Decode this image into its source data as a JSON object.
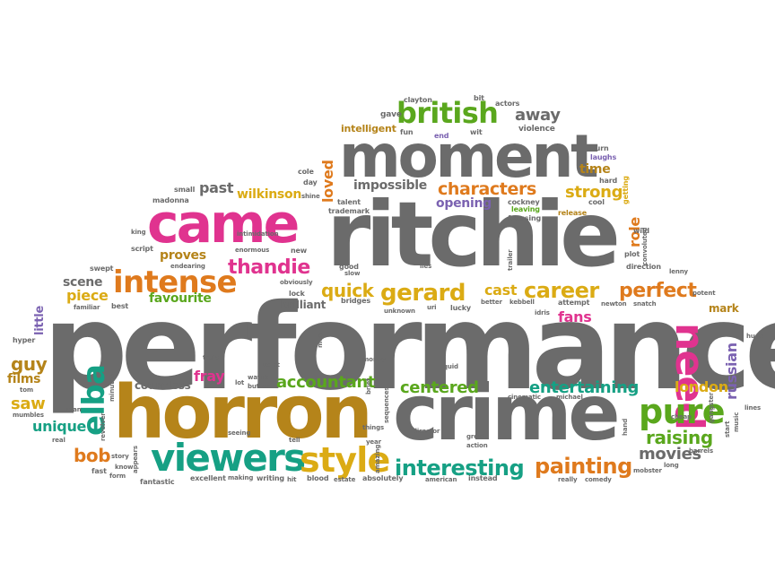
{
  "palette": {
    "gray": "#6b6b6b",
    "pink": "#e0338f",
    "gold": "#b5841a",
    "green": "#5aa71d",
    "teal": "#16a084",
    "orange": "#df7a1d",
    "purple": "#7b62b1",
    "yellow": "#dbab14"
  },
  "words": [
    {
      "text": "performance",
      "color": "gray"
    },
    {
      "text": "ritchie",
      "color": "gray"
    },
    {
      "text": "moment",
      "color": "gray"
    },
    {
      "text": "crime",
      "color": "gray"
    },
    {
      "text": "horron",
      "color": "gold"
    },
    {
      "text": "came",
      "color": "pink"
    },
    {
      "text": "british",
      "color": "green"
    },
    {
      "text": "viewers",
      "color": "teal"
    },
    {
      "text": "need",
      "color": "pink"
    },
    {
      "text": "elba",
      "color": "teal"
    },
    {
      "text": "intense",
      "color": "orange"
    },
    {
      "text": "style",
      "color": "yellow"
    },
    {
      "text": "pure",
      "color": "green"
    },
    {
      "text": "gerard",
      "color": "yellow"
    },
    {
      "text": "interesting",
      "color": "teal"
    },
    {
      "text": "painting",
      "color": "orange"
    },
    {
      "text": "thandie",
      "color": "pink"
    },
    {
      "text": "characters",
      "color": "orange"
    },
    {
      "text": "career",
      "color": "yellow"
    },
    {
      "text": "perfect",
      "color": "orange"
    },
    {
      "text": "quick",
      "color": "yellow"
    },
    {
      "text": "raising",
      "color": "green"
    },
    {
      "text": "entertaining",
      "color": "teal"
    },
    {
      "text": "accountant",
      "color": "green"
    },
    {
      "text": "centered",
      "color": "green"
    },
    {
      "text": "movies",
      "color": "gray"
    },
    {
      "text": "fans",
      "color": "pink"
    },
    {
      "text": "london",
      "color": "yellow"
    },
    {
      "text": "russian",
      "color": "purple"
    },
    {
      "text": "bob",
      "color": "orange"
    },
    {
      "text": "guy",
      "color": "gold"
    },
    {
      "text": "films",
      "color": "gold"
    },
    {
      "text": "unique",
      "color": "teal"
    },
    {
      "text": "saw",
      "color": "yellow"
    },
    {
      "text": "little",
      "color": "purple"
    },
    {
      "text": "piece",
      "color": "yellow"
    },
    {
      "text": "scene",
      "color": "gray"
    },
    {
      "text": "favourite",
      "color": "green"
    },
    {
      "text": "proves",
      "color": "gold"
    },
    {
      "text": "brilliant",
      "color": "gray"
    },
    {
      "text": "countless",
      "color": "gray"
    },
    {
      "text": "fray",
      "color": "pink"
    },
    {
      "text": "past",
      "color": "gray"
    },
    {
      "text": "wilkinson",
      "color": "yellow"
    },
    {
      "text": "loved",
      "color": "orange"
    },
    {
      "text": "impossible",
      "color": "gray"
    },
    {
      "text": "opening",
      "color": "purple"
    },
    {
      "text": "strong",
      "color": "yellow"
    },
    {
      "text": "time",
      "color": "gold"
    },
    {
      "text": "role",
      "color": "orange"
    },
    {
      "text": "away",
      "color": "gray"
    },
    {
      "text": "cast",
      "color": "yellow"
    },
    {
      "text": "mark",
      "color": "gold"
    },
    {
      "text": "intelligent",
      "color": "gold"
    },
    {
      "text": "gave",
      "color": "gray"
    },
    {
      "text": "clayton",
      "color": "gray"
    },
    {
      "text": "actors",
      "color": "gray"
    },
    {
      "text": "bit",
      "color": "gray"
    },
    {
      "text": "violence",
      "color": "gray"
    },
    {
      "text": "fun",
      "color": "gray"
    },
    {
      "text": "end",
      "color": "purple"
    },
    {
      "text": "wit",
      "color": "gray"
    },
    {
      "text": "turn",
      "color": "gray"
    },
    {
      "text": "laughs",
      "color": "purple"
    },
    {
      "text": "hard",
      "color": "gray"
    },
    {
      "text": "cool",
      "color": "gray"
    },
    {
      "text": "getting",
      "color": "yellow"
    },
    {
      "text": "release",
      "color": "gold"
    },
    {
      "text": "cockney",
      "color": "gray"
    },
    {
      "text": "leaving",
      "color": "green"
    },
    {
      "text": "focusing",
      "color": "gray"
    },
    {
      "text": "talent",
      "color": "gray"
    },
    {
      "text": "trademark",
      "color": "gray"
    },
    {
      "text": "cole",
      "color": "gray"
    },
    {
      "text": "day",
      "color": "gray"
    },
    {
      "text": "shine",
      "color": "gray"
    },
    {
      "text": "small",
      "color": "gray"
    },
    {
      "text": "madonna",
      "color": "gray"
    },
    {
      "text": "king",
      "color": "gray"
    },
    {
      "text": "script",
      "color": "gray"
    },
    {
      "text": "enormous",
      "color": "gray"
    },
    {
      "text": "new",
      "color": "gray"
    },
    {
      "text": "intimidation",
      "color": "gray"
    },
    {
      "text": "swept",
      "color": "gray"
    },
    {
      "text": "endearing",
      "color": "gray"
    },
    {
      "text": "familiar",
      "color": "gray"
    },
    {
      "text": "best",
      "color": "gray"
    },
    {
      "text": "obviously",
      "color": "gray"
    },
    {
      "text": "lock",
      "color": "gray"
    },
    {
      "text": "good",
      "color": "gray"
    },
    {
      "text": "slow",
      "color": "gray"
    },
    {
      "text": "bridges",
      "color": "gray"
    },
    {
      "text": "lies",
      "color": "gray"
    },
    {
      "text": "unknown",
      "color": "gray"
    },
    {
      "text": "uri",
      "color": "gray"
    },
    {
      "text": "lucky",
      "color": "gray"
    },
    {
      "text": "better",
      "color": "gray"
    },
    {
      "text": "kebbell",
      "color": "gray"
    },
    {
      "text": "idris",
      "color": "gray"
    },
    {
      "text": "attempt",
      "color": "gray"
    },
    {
      "text": "newton",
      "color": "gray"
    },
    {
      "text": "snatch",
      "color": "gray"
    },
    {
      "text": "lenny",
      "color": "gray"
    },
    {
      "text": "direction",
      "color": "gray"
    },
    {
      "text": "plot",
      "color": "gray"
    },
    {
      "text": "wild",
      "color": "gray"
    },
    {
      "text": "convoluted",
      "color": "gray"
    },
    {
      "text": "trailer",
      "color": "gray"
    },
    {
      "text": "potent",
      "color": "gray"
    },
    {
      "text": "hyper",
      "color": "gray"
    },
    {
      "text": "tom",
      "color": "gray"
    },
    {
      "text": "mumbles",
      "color": "gray"
    },
    {
      "text": "real",
      "color": "gray"
    },
    {
      "text": "man",
      "color": "gray"
    },
    {
      "text": "minutes",
      "color": "gray"
    },
    {
      "text": "revolver",
      "color": "gray"
    },
    {
      "text": "know",
      "color": "gray"
    },
    {
      "text": "form",
      "color": "gray"
    },
    {
      "text": "story",
      "color": "gray"
    },
    {
      "text": "fast",
      "color": "gray"
    },
    {
      "text": "fantastic",
      "color": "gray"
    },
    {
      "text": "excellent",
      "color": "gray"
    },
    {
      "text": "making",
      "color": "gray"
    },
    {
      "text": "writing",
      "color": "gray"
    },
    {
      "text": "hit",
      "color": "gray"
    },
    {
      "text": "blood",
      "color": "gray"
    },
    {
      "text": "estate",
      "color": "gray"
    },
    {
      "text": "absolutely",
      "color": "gray"
    },
    {
      "text": "american",
      "color": "gray"
    },
    {
      "text": "instead",
      "color": "gray"
    },
    {
      "text": "really",
      "color": "gray"
    },
    {
      "text": "comedy",
      "color": "gray"
    },
    {
      "text": "mobster",
      "color": "gray"
    },
    {
      "text": "long",
      "color": "gray"
    },
    {
      "text": "barrels",
      "color": "gray"
    },
    {
      "text": "hand",
      "color": "gray"
    },
    {
      "text": "cheap",
      "color": "gray"
    },
    {
      "text": "gangster",
      "color": "gray"
    },
    {
      "text": "start",
      "color": "gray"
    },
    {
      "text": "music",
      "color": "gray"
    },
    {
      "text": "lines",
      "color": "gray"
    },
    {
      "text": "huge",
      "color": "gray"
    },
    {
      "text": "truly",
      "color": "gray"
    },
    {
      "text": "lot",
      "color": "gray"
    },
    {
      "text": "watch",
      "color": "gray"
    },
    {
      "text": "butter",
      "color": "gray"
    },
    {
      "text": "point",
      "color": "gray"
    },
    {
      "text": "money",
      "color": "gray"
    },
    {
      "text": "quid",
      "color": "gray"
    },
    {
      "text": "brief",
      "color": "gray"
    },
    {
      "text": "sequences",
      "color": "gray"
    },
    {
      "text": "amazing",
      "color": "gray"
    },
    {
      "text": "things",
      "color": "gray"
    },
    {
      "text": "director",
      "color": "gray"
    },
    {
      "text": "year",
      "color": "gray"
    },
    {
      "text": "great",
      "color": "gray"
    },
    {
      "text": "action",
      "color": "gray"
    },
    {
      "text": "cinematic",
      "color": "gray"
    },
    {
      "text": "michael",
      "color": "gray"
    },
    {
      "text": "seeing",
      "color": "gray"
    },
    {
      "text": "tell",
      "color": "gray"
    },
    {
      "text": "appears",
      "color": "gray"
    },
    {
      "text": "men",
      "color": "gray"
    }
  ]
}
